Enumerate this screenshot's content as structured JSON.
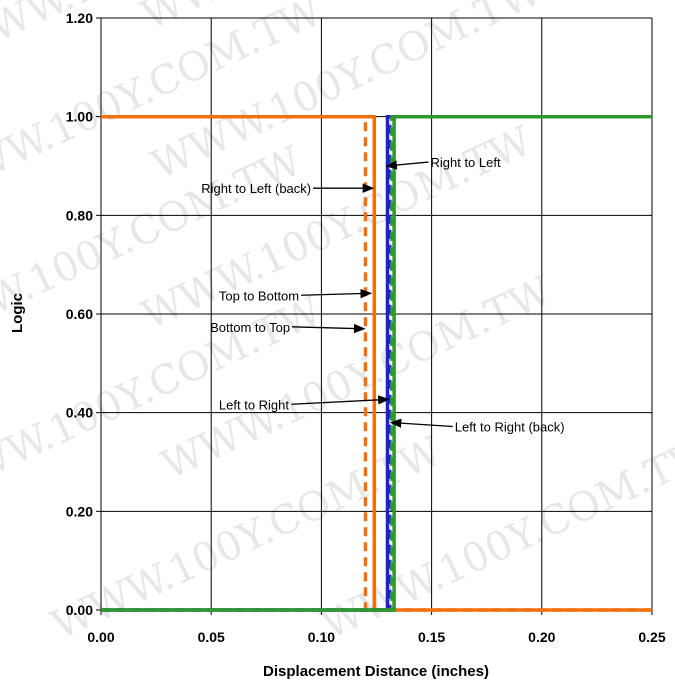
{
  "chart_data": {
    "type": "line",
    "title": "",
    "xlabel": "Displacement Distance (inches)",
    "ylabel": "Logic",
    "xlim": [
      0,
      0.25
    ],
    "ylim": [
      0,
      1.2
    ],
    "x_ticks": [
      0,
      0.05,
      0.1,
      0.15,
      0.2,
      0.25
    ],
    "x_tick_labels": [
      "0.00",
      "0.05",
      "0.10",
      "0.15",
      "0.20",
      "0.25"
    ],
    "y_ticks": [
      0,
      0.2,
      0.4,
      0.6,
      0.8,
      1.0,
      1.2
    ],
    "y_tick_labels": [
      "0.00",
      "0.20",
      "0.40",
      "0.60",
      "0.80",
      "1.00",
      "1.20"
    ],
    "grid": true,
    "legend": "none",
    "series": [
      {
        "name": "Left to Right",
        "color": "#1f1fd6",
        "dash": "solid",
        "x": [
          0,
          0.13,
          0.13,
          0.25
        ],
        "y": [
          0,
          0,
          1,
          1
        ]
      },
      {
        "name": "Right to Left",
        "color": "#1f1fd6",
        "dash": "dashed",
        "x": [
          0,
          0.131,
          0.131,
          0.25
        ],
        "y": [
          0,
          0,
          1,
          1
        ]
      },
      {
        "name": "Left to Right (back)",
        "color": "#2e9a2e",
        "dash": "solid",
        "x": [
          0,
          0.133,
          0.133,
          0.25
        ],
        "y": [
          0,
          0,
          1,
          1
        ]
      },
      {
        "name": "Right to Left (back)",
        "color": "#2e9a2e",
        "dash": "dashed",
        "x": [
          0,
          0.132,
          0.132,
          0.25
        ],
        "y": [
          0,
          0,
          1,
          1
        ]
      },
      {
        "name": "Top to Bottom",
        "color": "#f07010",
        "dash": "solid",
        "x": [
          0,
          0.124,
          0.124,
          0.25
        ],
        "y": [
          1,
          1,
          0,
          0
        ]
      },
      {
        "name": "Bottom to Top",
        "color": "#f07010",
        "dash": "dashed",
        "x": [
          0,
          0.12,
          0.12,
          0.25
        ],
        "y": [
          1,
          1,
          0,
          0
        ]
      }
    ],
    "annotations": [
      {
        "text": "Right to Left",
        "x": 0.1495,
        "y": 0.908,
        "target_x": 0.1295,
        "target_y": 0.9,
        "direction": "left"
      },
      {
        "text": "Right to Left (back)",
        "x": 0.0455,
        "y": 0.855,
        "target_x": 0.1235,
        "target_y": 0.855,
        "direction": "right"
      },
      {
        "text": "Top to Bottom",
        "x": 0.0535,
        "y": 0.638,
        "target_x": 0.1225,
        "target_y": 0.642,
        "direction": "right"
      },
      {
        "text": "Bottom to Top",
        "x": 0.0495,
        "y": 0.574,
        "target_x": 0.1195,
        "target_y": 0.57,
        "direction": "right"
      },
      {
        "text": "Left to Right",
        "x": 0.0535,
        "y": 0.417,
        "target_x": 0.1305,
        "target_y": 0.427,
        "direction": "right"
      },
      {
        "text": "Left to Right (back)",
        "x": 0.1605,
        "y": 0.372,
        "target_x": 0.1315,
        "target_y": 0.38,
        "direction": "left"
      }
    ]
  },
  "watermark": "WWW.100Y.COM.TW"
}
